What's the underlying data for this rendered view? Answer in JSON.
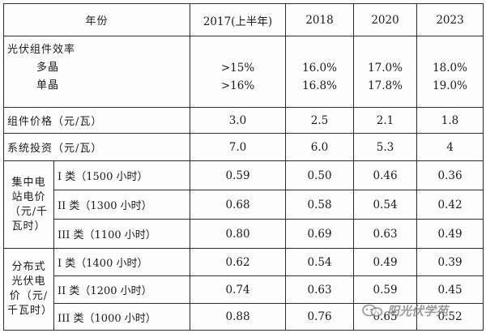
{
  "table": {
    "header": {
      "year_label": "年份",
      "years": [
        "2017(上半年)",
        "2018",
        "2020",
        "2023"
      ]
    },
    "efficiency": {
      "title": "光伏组件效率",
      "rows": [
        {
          "label": "多晶",
          "values": [
            ">15%",
            "16.0%",
            "17.0%",
            "18.0%"
          ]
        },
        {
          "label": "单晶",
          "values": [
            ">16%",
            "16.8%",
            "17.8%",
            "19.0%"
          ]
        }
      ]
    },
    "module_price": {
      "label": "组件价格（元/瓦）",
      "values": [
        "3.0",
        "2.5",
        "2.1",
        "1.8"
      ]
    },
    "system_investment": {
      "label": "系统投资（元/瓦）",
      "values": [
        "7.0",
        "6.0",
        "5.3",
        "4"
      ]
    },
    "centralized": {
      "group_label": [
        "集中电",
        "站电价",
        "（元/千",
        "瓦时）"
      ],
      "rows": [
        {
          "label": "I 类（1500 小时）",
          "values": [
            "0.59",
            "0.50",
            "0.46",
            "0.36"
          ]
        },
        {
          "label": "II 类（1300 小时）",
          "values": [
            "0.68",
            "0.58",
            "0.54",
            "0.42"
          ]
        },
        {
          "label": "III 类（1100 小时）",
          "values": [
            "0.80",
            "0.69",
            "0.63",
            "0.49"
          ]
        }
      ]
    },
    "distributed": {
      "group_label": [
        "分布式",
        "光伏电",
        "价（元/",
        "千瓦时）"
      ],
      "rows": [
        {
          "label": "I 类（1400 小时）",
          "values": [
            "0.62",
            "0.54",
            "0.49",
            "0.39"
          ]
        },
        {
          "label": "II 类（1200 小时）",
          "values": [
            "0.74",
            "0.63",
            "0.59",
            "0.45"
          ]
        },
        {
          "label": "III 类（1000 小时）",
          "values": [
            "0.88",
            "0.76",
            "0.65",
            "0.52"
          ]
        }
      ]
    }
  },
  "watermark": {
    "text": "阳光伏学苑",
    "icon": "wechat-logo-icon"
  }
}
